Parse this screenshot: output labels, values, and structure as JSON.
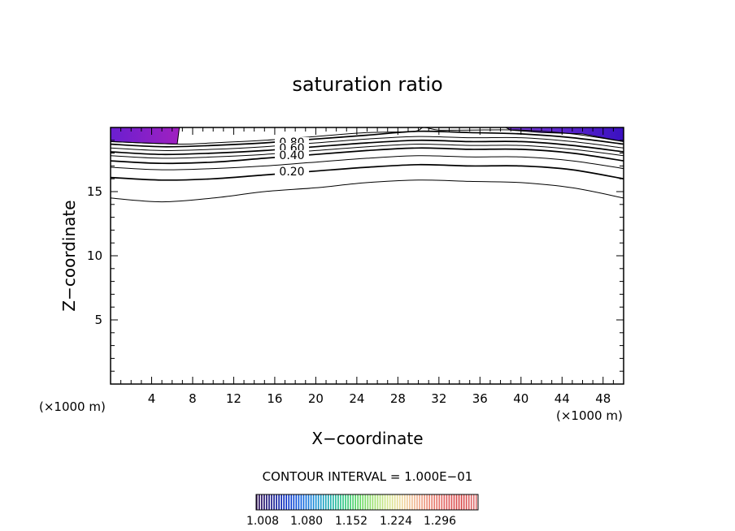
{
  "chart_data": {
    "type": "contour",
    "title": "saturation ratio",
    "xlabel": "X−coordinate",
    "ylabel": "Z−coordinate",
    "x_unit": "(×1000 m)",
    "y_unit": "(×1000 m)",
    "xlim": [
      0,
      50
    ],
    "ylim": [
      0,
      20
    ],
    "x_ticks": [
      4,
      8,
      12,
      16,
      20,
      24,
      28,
      32,
      36,
      40,
      44,
      48
    ],
    "y_ticks": [
      5,
      10,
      15
    ],
    "contour_interval_text": "CONTOUR INTERVAL = 1.000E−01",
    "contour_labels": [
      "0.80",
      "0.60",
      "0.40",
      "0.20"
    ],
    "contours": [
      {
        "level": 0.1,
        "points": [
          [
            0,
            14.5
          ],
          [
            5,
            14.2
          ],
          [
            10,
            14.5
          ],
          [
            15,
            15
          ],
          [
            20,
            15.3
          ],
          [
            25,
            15.7
          ],
          [
            30,
            15.9
          ],
          [
            35,
            15.8
          ],
          [
            40,
            15.7
          ],
          [
            45,
            15.3
          ],
          [
            50,
            14.5
          ]
        ]
      },
      {
        "level": 0.2,
        "points": [
          [
            0,
            16.1
          ],
          [
            5,
            15.9
          ],
          [
            10,
            16
          ],
          [
            15,
            16.3
          ],
          [
            20,
            16.6
          ],
          [
            25,
            16.9
          ],
          [
            30,
            17.1
          ],
          [
            35,
            17
          ],
          [
            40,
            17
          ],
          [
            45,
            16.7
          ],
          [
            50,
            16
          ]
        ]
      },
      {
        "level": 0.3,
        "points": [
          [
            0,
            16.9
          ],
          [
            5,
            16.7
          ],
          [
            10,
            16.8
          ],
          [
            15,
            17
          ],
          [
            20,
            17.3
          ],
          [
            25,
            17.6
          ],
          [
            30,
            17.8
          ],
          [
            35,
            17.7
          ],
          [
            40,
            17.7
          ],
          [
            45,
            17.4
          ],
          [
            50,
            16.8
          ]
        ]
      },
      {
        "level": 0.4,
        "points": [
          [
            0,
            17.4
          ],
          [
            5,
            17.2
          ],
          [
            10,
            17.3
          ],
          [
            15,
            17.6
          ],
          [
            20,
            17.9
          ],
          [
            25,
            18.2
          ],
          [
            30,
            18.4
          ],
          [
            35,
            18.3
          ],
          [
            40,
            18.3
          ],
          [
            45,
            18
          ],
          [
            50,
            17.4
          ]
        ]
      },
      {
        "level": 0.5,
        "points": [
          [
            0,
            17.8
          ],
          [
            5,
            17.6
          ],
          [
            10,
            17.7
          ],
          [
            15,
            17.9
          ],
          [
            20,
            18.2
          ],
          [
            25,
            18.5
          ],
          [
            30,
            18.7
          ],
          [
            35,
            18.6
          ],
          [
            40,
            18.6
          ],
          [
            45,
            18.3
          ],
          [
            50,
            17.8
          ]
        ]
      },
      {
        "level": 0.6,
        "points": [
          [
            0,
            18.1
          ],
          [
            5,
            17.9
          ],
          [
            10,
            18
          ],
          [
            15,
            18.2
          ],
          [
            20,
            18.5
          ],
          [
            25,
            18.8
          ],
          [
            30,
            19
          ],
          [
            35,
            18.9
          ],
          [
            40,
            18.9
          ],
          [
            45,
            18.6
          ],
          [
            50,
            18.1
          ]
        ]
      },
      {
        "level": 0.7,
        "points": [
          [
            0,
            18.4
          ],
          [
            5,
            18.2
          ],
          [
            10,
            18.3
          ],
          [
            15,
            18.5
          ],
          [
            20,
            18.8
          ],
          [
            25,
            19.1
          ],
          [
            30,
            19.3
          ],
          [
            35,
            19.2
          ],
          [
            40,
            19.2
          ],
          [
            45,
            18.9
          ],
          [
            50,
            18.4
          ]
        ]
      },
      {
        "level": 0.8,
        "points": [
          [
            0,
            18.7
          ],
          [
            5,
            18.5
          ],
          [
            10,
            18.6
          ],
          [
            15,
            18.8
          ],
          [
            20,
            19.1
          ],
          [
            25,
            19.4
          ],
          [
            30,
            19.7
          ],
          [
            35,
            19.6
          ],
          [
            40,
            19.5
          ],
          [
            45,
            19.2
          ],
          [
            50,
            18.7
          ]
        ]
      },
      {
        "level": 0.9,
        "points": [
          [
            0,
            18.9
          ],
          [
            6.5,
            18.7
          ],
          [
            10,
            18.8
          ],
          [
            15,
            19
          ],
          [
            20,
            19.3
          ],
          [
            25,
            19.6
          ],
          [
            29.5,
            19.7
          ],
          [
            30.5,
            20
          ],
          [
            32,
            19.8
          ],
          [
            35,
            19.8
          ],
          [
            40,
            19.8
          ],
          [
            45,
            19.5
          ],
          [
            50,
            18.9
          ]
        ]
      }
    ],
    "filled_regions": [
      {
        "points": [
          [
            0,
            20
          ],
          [
            0,
            18.9
          ],
          [
            3,
            18.8
          ],
          [
            6.5,
            18.7
          ],
          [
            6.7,
            20
          ]
        ],
        "gradient": [
          "#6a1fd0",
          "#a020c0"
        ]
      },
      {
        "points": [
          [
            38.5,
            20
          ],
          [
            39,
            19.8
          ],
          [
            42,
            19.6
          ],
          [
            46,
            19.5
          ],
          [
            50,
            18.9
          ],
          [
            50,
            20
          ]
        ],
        "gradient": [
          "#7a3cd6",
          "#3a10c0"
        ]
      }
    ],
    "colorbar": {
      "tick_labels": [
        "1.008",
        "1.080",
        "1.152",
        "1.224",
        "1.296"
      ],
      "colors": [
        "#2a0a50",
        "#1a1a8a",
        "#0a30c8",
        "#1060e0",
        "#1a90d8",
        "#20b0b0",
        "#30c880",
        "#60d860",
        "#a0e070",
        "#d8e890",
        "#f0d8a0",
        "#f0b090",
        "#e88070",
        "#e06060",
        "#d84848",
        "#e07878"
      ]
    }
  }
}
